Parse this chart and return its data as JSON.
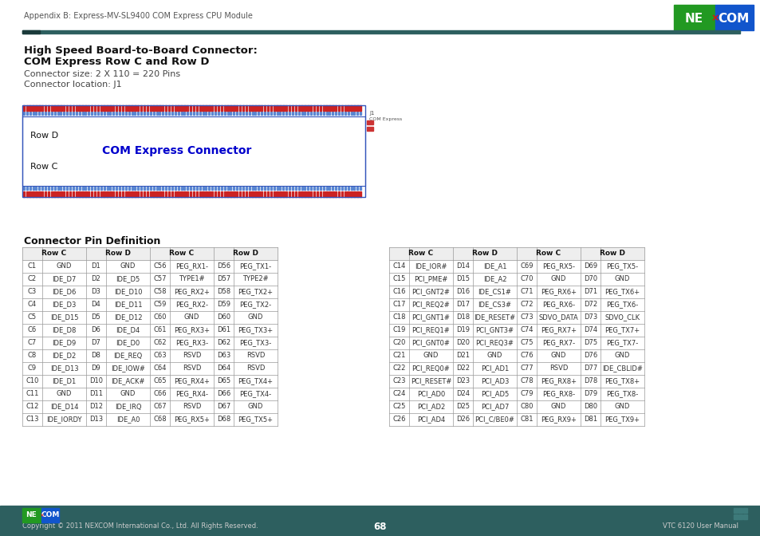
{
  "header_text": "Appendix B: Express-MV-SL9400 COM Express CPU Module",
  "title_line1": "High Speed Board-to-Board Connector:",
  "title_line2": "COM Express Row C and Row D",
  "subtitle1": "Connector size: 2 X 110 = 220 Pins",
  "subtitle2": "Connector location: J1",
  "connector_label": "COM Express Connector",
  "row_d_label": "Row D",
  "row_c_label": "Row C",
  "section_title": "Connector Pin Definition",
  "footer_copyright": "Copyright © 2011 NEXCOM International Co., Ltd. All Rights Reserved.",
  "footer_page": "68",
  "footer_right": "VTC 6120 User Manual",
  "table_left_rows": [
    [
      "C1",
      "GND",
      "D1",
      "GND",
      "C56",
      "PEG_RX1-",
      "D56",
      "PEG_TX1-"
    ],
    [
      "C2",
      "IDE_D7",
      "D2",
      "IDE_D5",
      "C57",
      "TYPE1#",
      "D57",
      "TYPE2#"
    ],
    [
      "C3",
      "IDE_D6",
      "D3",
      "IDE_D10",
      "C58",
      "PEG_RX2+",
      "D58",
      "PEG_TX2+"
    ],
    [
      "C4",
      "IDE_D3",
      "D4",
      "IDE_D11",
      "C59",
      "PEG_RX2-",
      "D59",
      "PEG_TX2-"
    ],
    [
      "C5",
      "IDE_D15",
      "D5",
      "IDE_D12",
      "C60",
      "GND",
      "D60",
      "GND"
    ],
    [
      "C6",
      "IDE_D8",
      "D6",
      "IDE_D4",
      "C61",
      "PEG_RX3+",
      "D61",
      "PEG_TX3+"
    ],
    [
      "C7",
      "IDE_D9",
      "D7",
      "IDE_D0",
      "C62",
      "PEG_RX3-",
      "D62",
      "PEG_TX3-"
    ],
    [
      "C8",
      "IDE_D2",
      "D8",
      "IDE_REQ",
      "C63",
      "RSVD",
      "D63",
      "RSVD"
    ],
    [
      "C9",
      "IDE_D13",
      "D9",
      "IDE_IOW#",
      "C64",
      "RSVD",
      "D64",
      "RSVD"
    ],
    [
      "C10",
      "IDE_D1",
      "D10",
      "IDE_ACK#",
      "C65",
      "PEG_RX4+",
      "D65",
      "PEG_TX4+"
    ],
    [
      "C11",
      "GND",
      "D11",
      "GND",
      "C66",
      "PEG_RX4-",
      "D66",
      "PEG_TX4-"
    ],
    [
      "C12",
      "IDE_D14",
      "D12",
      "IDE_IRQ",
      "C67",
      "RSVD",
      "D67",
      "GND"
    ],
    [
      "C13",
      "IDE_IORDY",
      "D13",
      "IDE_A0",
      "C68",
      "PEG_RX5+",
      "D68",
      "PEG_TX5+"
    ]
  ],
  "table_right_rows": [
    [
      "C14",
      "IDE_IOR#",
      "D14",
      "IDE_A1",
      "C69",
      "PEG_RX5-",
      "D69",
      "PEG_TX5-"
    ],
    [
      "C15",
      "PCI_PME#",
      "D15",
      "IDE_A2",
      "C70",
      "GND",
      "D70",
      "GND"
    ],
    [
      "C16",
      "PCI_GNT2#",
      "D16",
      "IDE_CS1#",
      "C71",
      "PEG_RX6+",
      "D71",
      "PEG_TX6+"
    ],
    [
      "C17",
      "PCI_REQ2#",
      "D17",
      "IDE_CS3#",
      "C72",
      "PEG_RX6-",
      "D72",
      "PEG_TX6-"
    ],
    [
      "C18",
      "PCI_GNT1#",
      "D18",
      "IDE_RESET#",
      "C73",
      "SDVO_DATA",
      "D73",
      "SDVO_CLK"
    ],
    [
      "C19",
      "PCI_REQ1#",
      "D19",
      "PCI_GNT3#",
      "C74",
      "PEG_RX7+",
      "D74",
      "PEG_TX7+"
    ],
    [
      "C20",
      "PCI_GNT0#",
      "D20",
      "PCI_REQ3#",
      "C75",
      "PEG_RX7-",
      "D75",
      "PEG_TX7-"
    ],
    [
      "C21",
      "GND",
      "D21",
      "GND",
      "C76",
      "GND",
      "D76",
      "GND"
    ],
    [
      "C22",
      "PCI_REQ0#",
      "D22",
      "PCI_AD1",
      "C77",
      "RSVD",
      "D77",
      "IDE_CBLID#"
    ],
    [
      "C23",
      "PCI_RESET#",
      "D23",
      "PCI_AD3",
      "C78",
      "PEG_RX8+",
      "D78",
      "PEG_TX8+"
    ],
    [
      "C24",
      "PCI_AD0",
      "D24",
      "PCI_AD5",
      "C79",
      "PEG_RX8-",
      "D79",
      "PEG_TX8-"
    ],
    [
      "C25",
      "PCI_AD2",
      "D25",
      "PCI_AD7",
      "C80",
      "GND",
      "D80",
      "GND"
    ],
    [
      "C26",
      "PCI_AD4",
      "D26",
      "PCI_C/BE0#",
      "C81",
      "PEG_RX9+",
      "D81",
      "PEG_TX9+"
    ]
  ],
  "bg_color": "#ffffff",
  "dark_teal": "#2d5f5f",
  "connector_label_color": "#0000cc"
}
